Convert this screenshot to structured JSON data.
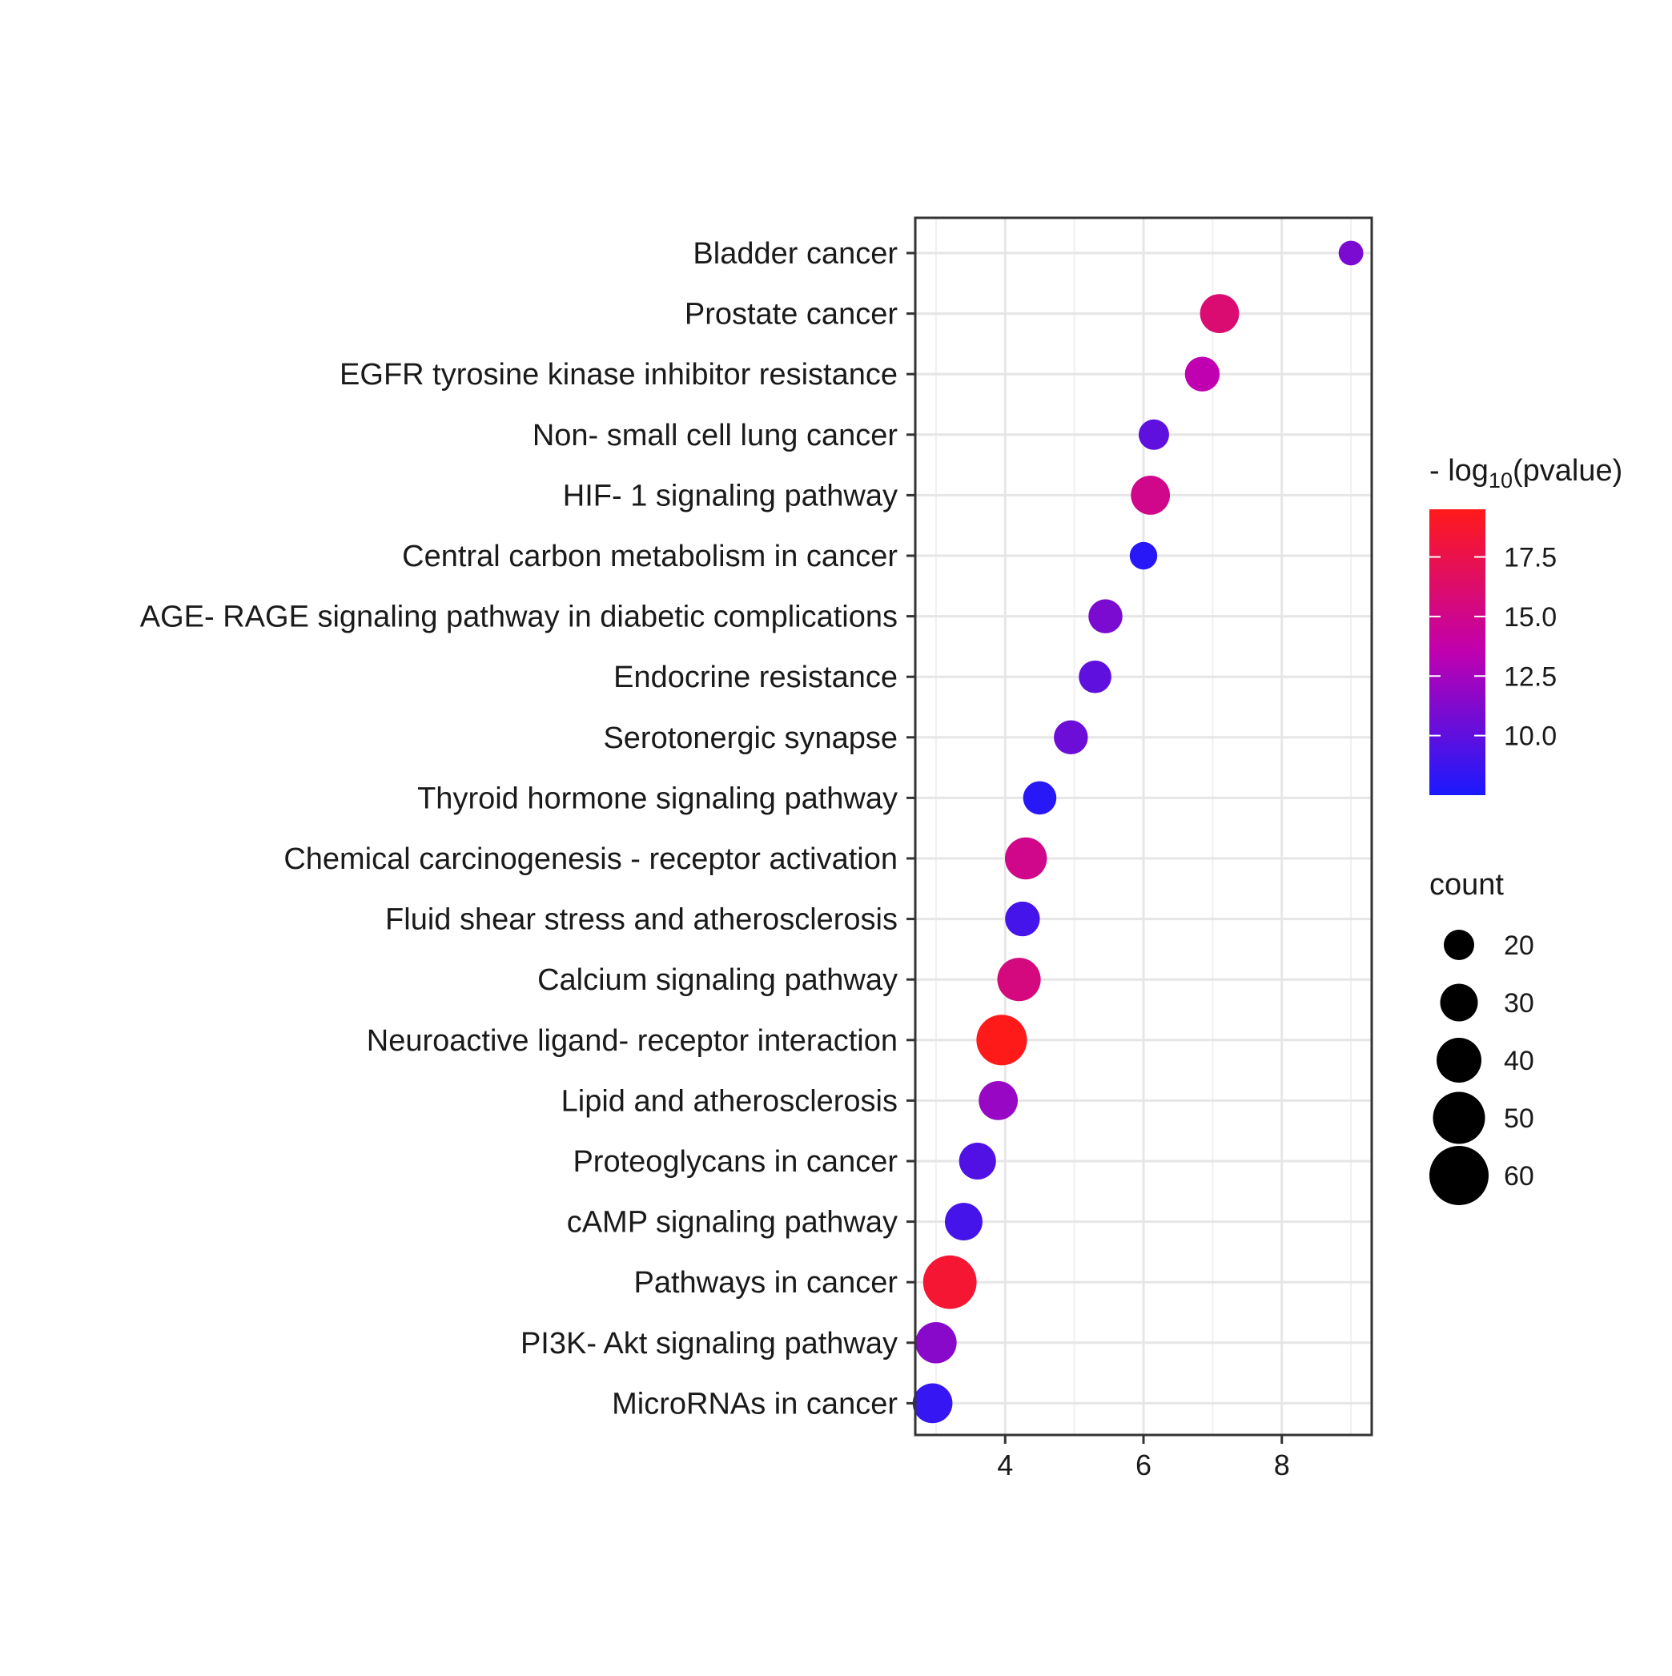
{
  "chart_data": {
    "type": "scatter",
    "title": "",
    "xlabel": "",
    "ylabel": "",
    "xlim": [
      2.7,
      9.3
    ],
    "x_ticks": [
      4,
      6,
      8
    ],
    "grid": true,
    "categories": [
      "Bladder cancer",
      "Prostate cancer",
      "EGFR tyrosine kinase inhibitor resistance",
      "Non- small cell lung cancer",
      "HIF- 1 signaling pathway",
      "Central carbon metabolism in cancer",
      "AGE- RAGE signaling pathway in diabetic complications",
      "Endocrine resistance",
      "Serotonergic synapse",
      "Thyroid hormone signaling pathway",
      "Chemical carcinogenesis -  receptor activation",
      "Fluid shear stress and atherosclerosis",
      "Calcium signaling pathway",
      "Neuroactive ligand- receptor interaction",
      "Lipid and atherosclerosis",
      "Proteoglycans in cancer",
      "cAMP signaling pathway",
      "Pathways in cancer",
      "PI3K- Akt signaling pathway",
      "MicroRNAs in cancer"
    ],
    "x": [
      9.0,
      7.1,
      6.85,
      6.15,
      6.1,
      6.0,
      5.45,
      5.3,
      4.95,
      4.5,
      4.3,
      4.25,
      4.2,
      3.95,
      3.9,
      3.6,
      3.4,
      3.2,
      3.0,
      2.95
    ],
    "pvalue": [
      11.0,
      16.0,
      13.5,
      10.0,
      15.0,
      8.0,
      11.0,
      10.0,
      10.5,
      8.0,
      15.0,
      9.0,
      15.5,
      19.5,
      12.0,
      9.5,
      9.0,
      18.5,
      11.5,
      8.5
    ],
    "count": [
      12,
      32,
      26,
      20,
      32,
      16,
      25,
      23,
      25,
      24,
      36,
      26,
      38,
      48,
      32,
      29,
      30,
      52,
      35,
      33
    ],
    "color_legend": {
      "title_prefix": "- log",
      "title_subscript": "10",
      "title_suffix": "(pvalue)",
      "range": [
        7.5,
        19.5
      ],
      "breaks": [
        10.0,
        12.5,
        15.0,
        17.5
      ],
      "break_labels": [
        "10.0",
        "12.5",
        "15.0",
        "17.5"
      ],
      "low_color": "#1a1aff",
      "mid_color": "#c000b0",
      "high_color": "#ff1a1a"
    },
    "size_legend": {
      "title": "count",
      "breaks": [
        20,
        30,
        40,
        50,
        60
      ],
      "labels": [
        "20",
        "30",
        "40",
        "50",
        "60"
      ],
      "color": "#000000"
    }
  }
}
